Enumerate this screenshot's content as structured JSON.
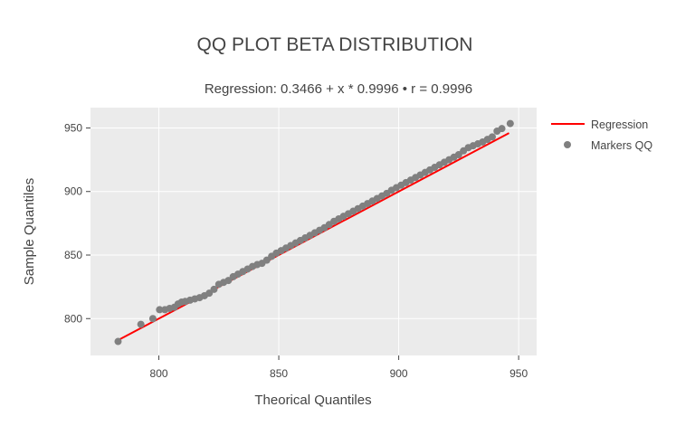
{
  "chart_data": {
    "type": "scatter",
    "title": "QQ PLOT BETA DISTRIBUTION",
    "subtitle": "Regression: 0.3466 + x * 0.9996 • r = 0.9996",
    "xlabel": "Theorical Quantiles",
    "ylabel": "Sample Quantiles",
    "xlim": [
      771.5,
      957.5
    ],
    "ylim": [
      771,
      966
    ],
    "x_ticks": [
      800,
      850,
      900,
      950
    ],
    "y_ticks": [
      800,
      850,
      900,
      950
    ],
    "grid": true,
    "legend_position": "top-right",
    "colors": {
      "regression": "#ff0000",
      "markers": "#808080",
      "plot_bg": "#ebebeb",
      "grid": "#ffffff"
    },
    "series": [
      {
        "name": "Regression",
        "kind": "line",
        "x": [
          783,
          946
        ],
        "y": [
          783.0,
          946.0
        ]
      },
      {
        "name": "Markers QQ",
        "kind": "markers",
        "x": [
          783,
          792.5,
          797.5,
          800.3,
          802.5,
          804.5,
          806.5,
          808,
          809.5,
          811,
          813,
          815,
          817,
          819,
          821,
          823,
          825,
          827,
          829,
          831,
          833,
          835,
          837,
          839,
          841,
          843,
          845,
          847,
          849,
          851,
          853,
          855,
          857,
          859,
          861,
          863,
          865,
          867,
          869,
          871,
          873,
          875,
          877,
          879,
          881,
          883,
          885,
          887,
          889,
          891,
          893,
          895,
          897,
          899,
          901,
          903,
          905,
          907,
          909,
          911,
          913,
          915,
          917,
          919,
          921,
          923,
          925,
          927,
          929,
          931,
          933,
          935,
          937,
          939,
          941,
          943,
          946.5
        ],
        "y": [
          782,
          795.5,
          800,
          807,
          807,
          808,
          809,
          811.5,
          813,
          813.5,
          814.5,
          815.5,
          816.5,
          818,
          820,
          823,
          827,
          828.5,
          830,
          833,
          835,
          837,
          839,
          841,
          842.5,
          843.5,
          846,
          849,
          851.5,
          853.5,
          855.5,
          857.5,
          859.5,
          861.5,
          863.5,
          865.5,
          867.5,
          869.5,
          871.5,
          874,
          876.5,
          878.5,
          880.5,
          882.5,
          884.5,
          886.5,
          888.5,
          890.5,
          892.5,
          894.5,
          896.5,
          898.5,
          901,
          903,
          905,
          907,
          909,
          911,
          913,
          915,
          917,
          919,
          921,
          923,
          925,
          927,
          929,
          932,
          934.5,
          936,
          937.5,
          939,
          941,
          943,
          947.5,
          949.5,
          953.5
        ]
      }
    ]
  }
}
